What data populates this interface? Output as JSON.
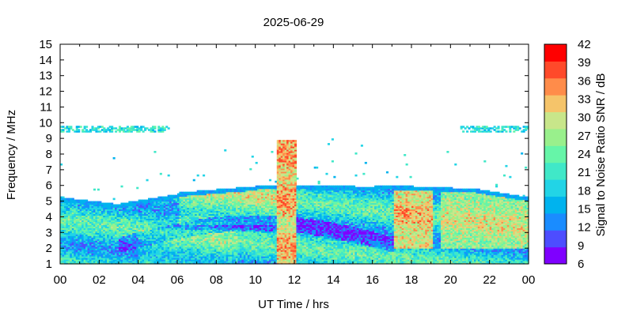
{
  "chart_data": {
    "type": "heatmap",
    "title": "2025-06-29",
    "xlabel": "UT Time / hrs",
    "ylabel": "Frequency / MHz",
    "colorbar_label": "Signal to Noise Ratio SNR / dB",
    "xlim": [
      0,
      24
    ],
    "ylim": [
      1,
      15
    ],
    "clim": [
      6,
      42
    ],
    "x_tick_labels": [
      "00",
      "02",
      "04",
      "06",
      "08",
      "10",
      "12",
      "14",
      "16",
      "18",
      "20",
      "22",
      "00"
    ],
    "y_tick_labels": [
      "1",
      "2",
      "3",
      "4",
      "5",
      "6",
      "7",
      "8",
      "9",
      "10",
      "11",
      "12",
      "13",
      "14",
      "15"
    ],
    "colorbar_tick_labels": [
      "6",
      "9",
      "12",
      "15",
      "18",
      "21",
      "24",
      "27",
      "30",
      "33",
      "36",
      "39",
      "42"
    ],
    "colorbar_colors": [
      "#7f00ff",
      "#4d4dff",
      "#1a8cff",
      "#00b3ee",
      "#22d4e6",
      "#40e8c8",
      "#66f5a8",
      "#99f08c",
      "#c8e68a",
      "#f5c46a",
      "#ff8c4a",
      "#ff4a2a",
      "#ff0000"
    ],
    "grid": false,
    "approx_regions": [
      {
        "desc": "main band",
        "x_range": [
          0,
          24
        ],
        "freq_range": [
          1,
          5.5
        ],
        "snr": 22
      },
      {
        "desc": "upper 9.5 MHz trace early",
        "x_range": [
          0,
          5.5
        ],
        "freq": 9.5,
        "snr": 22
      },
      {
        "desc": "upper 9.5 MHz trace late",
        "x_range": [
          20.5,
          24
        ],
        "freq": 9.5,
        "snr": 22
      },
      {
        "desc": "spike",
        "x_range": [
          11,
          12
        ],
        "freq_range": [
          1,
          8.8
        ],
        "snr": 40
      },
      {
        "desc": "afternoon hot block",
        "x_range": [
          17,
          19
        ],
        "freq_range": [
          2,
          6
        ],
        "snr": 38
      },
      {
        "desc": "evening warm block",
        "x_range": [
          19.5,
          24
        ],
        "freq_range": [
          2,
          5.5
        ],
        "snr": 33
      }
    ]
  }
}
